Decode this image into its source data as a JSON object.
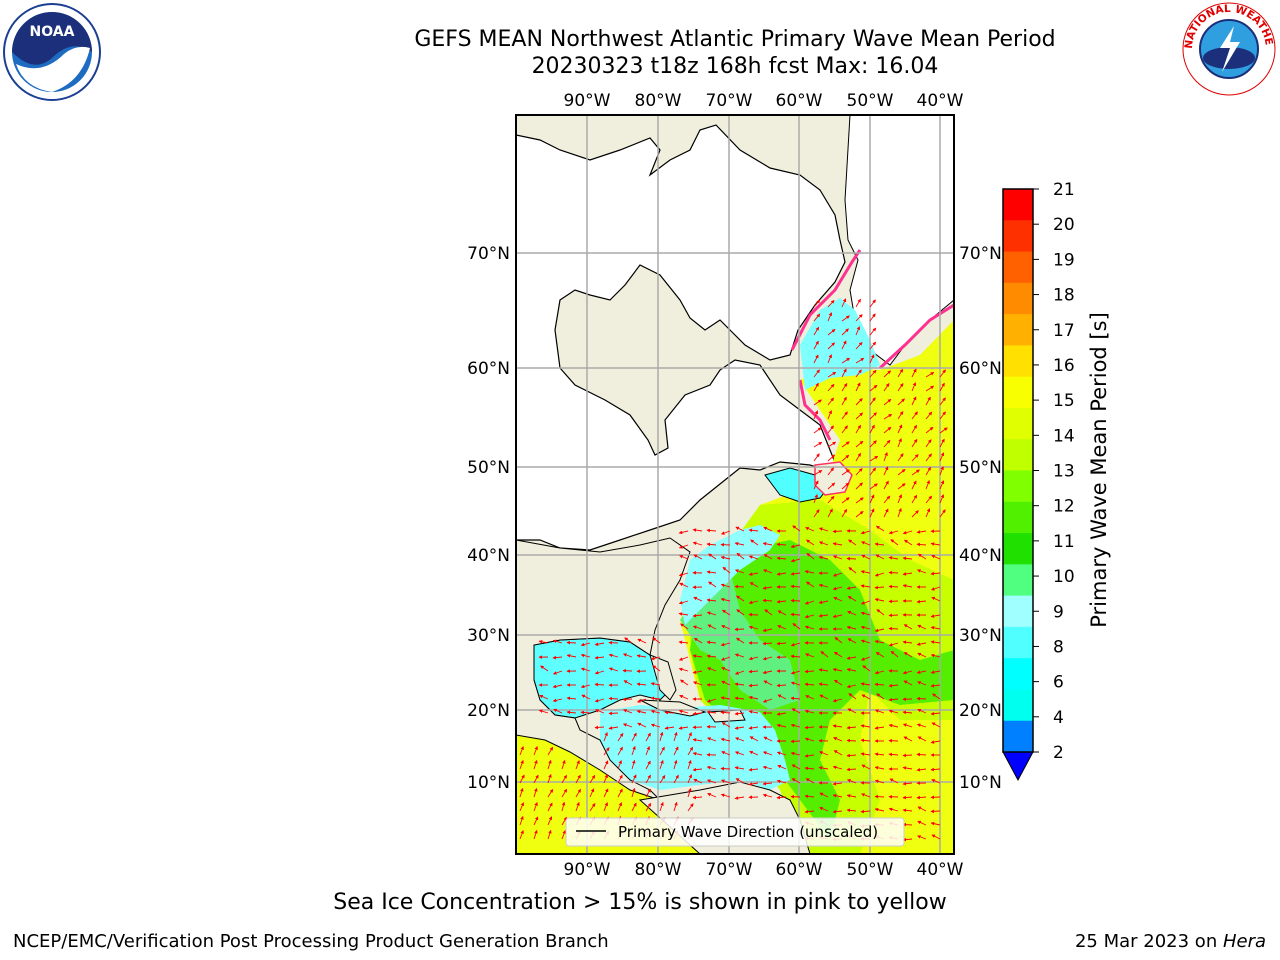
{
  "title_line1": "GEFS MEAN Northwest Atlantic Primary Wave Mean Period",
  "title_line2": "20230323 t18z 168h fcst   Max: 16.04",
  "lon_labels": [
    "90°W",
    "80°W",
    "70°W",
    "60°W",
    "50°W",
    "40°W"
  ],
  "lat_labels": [
    "70°N",
    "60°N",
    "50°N",
    "40°N",
    "30°N",
    "20°N",
    "10°N"
  ],
  "legend_label": "Primary Wave Direction (unscaled)",
  "colorbar": {
    "label": "Primary Wave Mean Period [s]",
    "ticks": [
      "21",
      "20",
      "19",
      "18",
      "17",
      "16",
      "15",
      "14",
      "13",
      "12",
      "11",
      "10",
      "9",
      "8",
      "6",
      "4",
      "2"
    ],
    "colors": [
      "#ff0000",
      "#ff3000",
      "#ff6000",
      "#ff8c00",
      "#ffb000",
      "#ffe000",
      "#f7ff00",
      "#e0ff00",
      "#c0ff00",
      "#80ff00",
      "#50f000",
      "#20e000",
      "#50ff80",
      "#a0ffff",
      "#50ffff",
      "#00ffff",
      "#00ffee",
      "#0080ff"
    ],
    "under_color": "#0000ff"
  },
  "note": "Sea Ice Concentration > 15% is shown in pink to yellow",
  "credit": "NCEP/EMC/Verification Post Processing Product Generation Branch",
  "date": "25 Mar 2023 on ",
  "host": "Hera",
  "noaa_logo_text": "NOAA",
  "nws_logo_text": "NATIONAL WEATHER SERVICE",
  "colors": {
    "land": "#f0eedc",
    "ice_land": "#ffffff",
    "grid": "#aaaaaa",
    "arrow": "#ff0000"
  }
}
